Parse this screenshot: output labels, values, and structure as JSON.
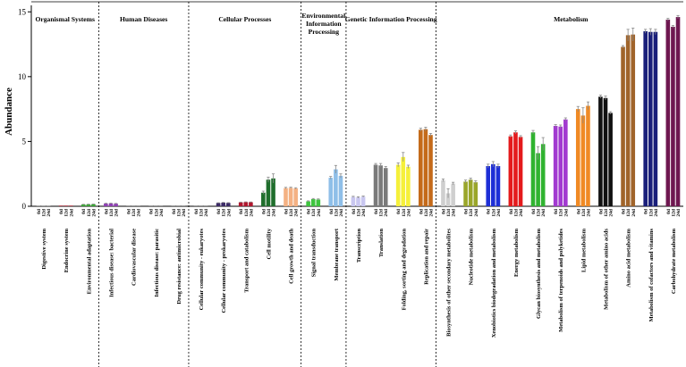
{
  "chart_data": {
    "type": "bar",
    "ylabel": "Abundance",
    "ylim": [
      0,
      15.5
    ],
    "yticks": [
      0,
      5,
      10,
      15
    ],
    "time_labels": [
      "0d",
      "12d",
      "24d"
    ],
    "sections": [
      {
        "name": "Organismal Systems",
        "start": 0,
        "end": 3
      },
      {
        "name": "Human Diseases",
        "start": 3,
        "end": 7
      },
      {
        "name": "Cellular Processes",
        "start": 7,
        "end": 12
      },
      {
        "name": "Environmental Information Processing",
        "start": 12,
        "end": 14
      },
      {
        "name": "Genetic Information Processing",
        "start": 14,
        "end": 18
      },
      {
        "name": "Metabolism",
        "start": 18,
        "end": 30
      }
    ],
    "categories": [
      {
        "name": "Digestive system",
        "color": "#6e6e6e",
        "values": [
          0.01,
          0.01,
          0.01
        ],
        "errors": [
          0,
          0,
          0
        ]
      },
      {
        "name": "Endocrine system",
        "color": "#b23a48",
        "values": [
          0.06,
          0.06,
          0.06
        ],
        "errors": [
          0,
          0,
          0
        ]
      },
      {
        "name": "Environmental adaptation",
        "color": "#3aa535",
        "values": [
          0.14,
          0.15,
          0.16
        ],
        "errors": [
          0.01,
          0.01,
          0.01
        ]
      },
      {
        "name": "Infectious disease: bacterial",
        "color": "#8e3fb3",
        "values": [
          0.21,
          0.22,
          0.2
        ],
        "errors": [
          0.02,
          0.02,
          0.02
        ]
      },
      {
        "name": "Cardiovascular disease",
        "color": "#5a5a5a",
        "values": [
          0.02,
          0.02,
          0.02
        ],
        "errors": [
          0,
          0,
          0
        ]
      },
      {
        "name": "Infectious disease: parasitic",
        "color": "#5a5a5a",
        "values": [
          0.01,
          0.01,
          0.01
        ],
        "errors": [
          0,
          0,
          0
        ]
      },
      {
        "name": "Drug resistance: antimicrobial",
        "color": "#5a5a5a",
        "values": [
          0.03,
          0.03,
          0.03
        ],
        "errors": [
          0,
          0,
          0
        ]
      },
      {
        "name": "Cellular community - eukaryotes",
        "color": "#5a5a5a",
        "values": [
          0.02,
          0.02,
          0.02
        ],
        "errors": [
          0,
          0,
          0
        ]
      },
      {
        "name": "Cellular community - prokaryotes",
        "color": "#3b2a66",
        "values": [
          0.25,
          0.28,
          0.26
        ],
        "errors": [
          0.02,
          0.02,
          0.02
        ]
      },
      {
        "name": "Transport and catabolism",
        "color": "#b0172e",
        "values": [
          0.3,
          0.32,
          0.31
        ],
        "errors": [
          0.02,
          0.02,
          0.02
        ]
      },
      {
        "name": "Cell motility",
        "color": "#1f6e2c",
        "values": [
          1.05,
          2.05,
          2.15
        ],
        "errors": [
          0.12,
          0.2,
          0.35
        ]
      },
      {
        "name": "Cell growth and death",
        "color": "#f4b183",
        "values": [
          1.4,
          1.42,
          1.38
        ],
        "errors": [
          0.06,
          0.05,
          0.05
        ]
      },
      {
        "name": "Signal transduction",
        "color": "#3ec43e",
        "values": [
          0.38,
          0.55,
          0.52
        ],
        "errors": [
          0.04,
          0.05,
          0.05
        ]
      },
      {
        "name": "Membrane transport",
        "color": "#8fbfe8",
        "values": [
          2.2,
          2.85,
          2.35
        ],
        "errors": [
          0.1,
          0.3,
          0.15
        ]
      },
      {
        "name": "Transcription",
        "color": "#c9c7f0",
        "values": [
          0.72,
          0.68,
          0.74
        ],
        "errors": [
          0.05,
          0.05,
          0.05
        ]
      },
      {
        "name": "Translation",
        "color": "#7a7a7a",
        "values": [
          3.2,
          3.15,
          2.95
        ],
        "errors": [
          0.1,
          0.15,
          0.12
        ]
      },
      {
        "name": "Folding, sorting and degradation",
        "color": "#f5f03a",
        "values": [
          3.2,
          3.8,
          3.05
        ],
        "errors": [
          0.15,
          0.35,
          0.12
        ]
      },
      {
        "name": "Replication and repair",
        "color": "#c46a1a",
        "values": [
          5.9,
          5.95,
          5.5
        ],
        "errors": [
          0.12,
          0.15,
          0.12
        ]
      },
      {
        "name": "Biosynthesis of other secondary metabolites",
        "color": "#cfcfcf",
        "values": [
          2.0,
          1.0,
          1.75
        ],
        "errors": [
          0.1,
          0.35,
          0.1
        ]
      },
      {
        "name": "Nucleotide metabolism",
        "color": "#9aa62a",
        "values": [
          1.9,
          2.05,
          1.85
        ],
        "errors": [
          0.12,
          0.12,
          0.12
        ]
      },
      {
        "name": "Xenobiotics biodegradation and metabolism",
        "color": "#1e2fd6",
        "values": [
          3.1,
          3.25,
          3.1
        ],
        "errors": [
          0.15,
          0.2,
          0.15
        ]
      },
      {
        "name": "Energy metabolism",
        "color": "#e41a1c",
        "values": [
          5.4,
          5.7,
          5.35
        ],
        "errors": [
          0.1,
          0.12,
          0.1
        ]
      },
      {
        "name": "Glycan biosynthesis and metabolism",
        "color": "#2fb32f",
        "values": [
          5.7,
          4.1,
          4.8
        ],
        "errors": [
          0.15,
          0.5,
          0.5
        ]
      },
      {
        "name": "Metabolism of terpenoids and polyketides",
        "color": "#a23ad0",
        "values": [
          6.2,
          6.15,
          6.7
        ],
        "errors": [
          0.1,
          0.12,
          0.12
        ]
      },
      {
        "name": "Lipid metabolism",
        "color": "#f08a24",
        "values": [
          7.5,
          7.0,
          7.75
        ],
        "errors": [
          0.2,
          0.6,
          0.3
        ]
      },
      {
        "name": "Metabolism of other amino acids",
        "color": "#111111",
        "values": [
          8.45,
          8.35,
          7.2
        ],
        "errors": [
          0.12,
          0.15,
          0.1
        ]
      },
      {
        "name": "Amino acid metabolism",
        "color": "#a0642a",
        "values": [
          12.3,
          13.2,
          13.25
        ],
        "errors": [
          0.1,
          0.45,
          0.5
        ]
      },
      {
        "name": "Metabolism of cofactors and vitamins",
        "color": "#1a1f7a",
        "values": [
          13.5,
          13.45,
          13.45
        ],
        "errors": [
          0.15,
          0.25,
          0.2
        ]
      },
      {
        "name": "Carbohydrate metabolism",
        "color": "#6e1750",
        "values": [
          14.4,
          13.85,
          14.6
        ],
        "errors": [
          0.1,
          0.1,
          0.12
        ]
      }
    ]
  }
}
